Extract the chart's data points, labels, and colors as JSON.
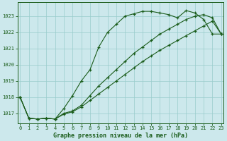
{
  "title": "Graphe pression niveau de la mer (hPa)",
  "bg_color": "#cce8ec",
  "grid_color": "#99cccc",
  "line_color": "#1a5c1a",
  "xlim": [
    -0.3,
    23.3
  ],
  "ylim": [
    1016.4,
    1023.85
  ],
  "yticks": [
    1017,
    1018,
    1019,
    1020,
    1021,
    1022,
    1023
  ],
  "xticks": [
    0,
    1,
    2,
    3,
    4,
    5,
    6,
    7,
    8,
    9,
    10,
    11,
    12,
    13,
    14,
    15,
    16,
    17,
    18,
    19,
    20,
    21,
    22,
    23
  ],
  "line1": [
    1018.0,
    1016.7,
    1016.65,
    1016.7,
    1016.65,
    1017.3,
    1018.1,
    1019.0,
    1019.7,
    1021.1,
    1022.0,
    1022.5,
    1023.0,
    1023.15,
    1023.3,
    1023.3,
    1023.2,
    1023.1,
    1022.9,
    1023.35,
    1023.2,
    1022.8,
    1021.9,
    1021.9
  ],
  "line2": [
    1018.0,
    1016.7,
    1016.65,
    1016.7,
    1016.65,
    1017.0,
    1017.15,
    1017.5,
    1018.1,
    1018.7,
    1019.2,
    1019.7,
    1020.2,
    1020.7,
    1021.1,
    1021.5,
    1021.9,
    1022.2,
    1022.5,
    1022.8,
    1023.0,
    1023.1,
    1022.9,
    1021.9
  ],
  "line3": [
    1018.0,
    1016.7,
    1016.65,
    1016.7,
    1016.65,
    1016.95,
    1017.1,
    1017.4,
    1017.8,
    1018.2,
    1018.6,
    1019.0,
    1019.4,
    1019.8,
    1020.2,
    1020.55,
    1020.9,
    1021.2,
    1021.5,
    1021.8,
    1022.1,
    1022.4,
    1022.7,
    1021.9
  ]
}
